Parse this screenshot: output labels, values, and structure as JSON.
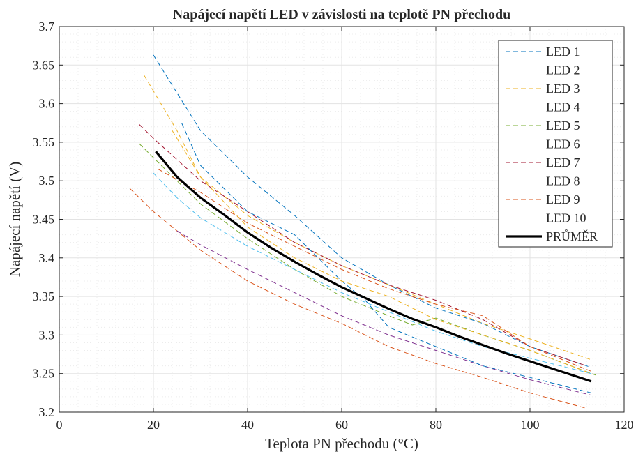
{
  "chart_data": {
    "type": "line",
    "title": "Napájecí napětí LED v závislosti na teplotě PN přechodu",
    "xlabel": "Teplota PN přechodu (°C)",
    "ylabel": "Napájecí napětí (V)",
    "xlim": [
      0,
      120
    ],
    "ylim": [
      3.2,
      3.7
    ],
    "xticks": [
      "0",
      "20",
      "40",
      "60",
      "80",
      "100",
      "120"
    ],
    "yticks": [
      "3.2",
      "3.25",
      "3.3",
      "3.35",
      "3.4",
      "3.45",
      "3.5",
      "3.55",
      "3.6",
      "3.65",
      "3.7"
    ],
    "grid": "major and minor",
    "legend_position": "top-right",
    "series": [
      {
        "name": "LED 1",
        "color": "#0072BD",
        "style": "dashed",
        "x": [
          20,
          30,
          40,
          50,
          60,
          70,
          80,
          90,
          100,
          113
        ],
        "y": [
          3.663,
          3.565,
          3.505,
          3.455,
          3.4,
          3.365,
          3.335,
          3.315,
          3.285,
          3.258
        ]
      },
      {
        "name": "LED 2",
        "color": "#D95319",
        "style": "dashed",
        "x": [
          15,
          20,
          30,
          40,
          50,
          60,
          70,
          80,
          90,
          100,
          112
        ],
        "y": [
          3.49,
          3.46,
          3.41,
          3.37,
          3.34,
          3.315,
          3.285,
          3.263,
          3.245,
          3.225,
          3.205
        ]
      },
      {
        "name": "LED 3",
        "color": "#EDB120",
        "style": "dashed",
        "x": [
          18,
          25,
          30,
          40,
          50,
          60,
          70,
          80,
          90,
          100,
          113
        ],
        "y": [
          3.637,
          3.565,
          3.505,
          3.455,
          3.42,
          3.39,
          3.365,
          3.34,
          3.315,
          3.295,
          3.268
        ]
      },
      {
        "name": "LED 4",
        "color": "#7E2F8E",
        "style": "dashed",
        "x": [
          25,
          30,
          40,
          50,
          60,
          70,
          80,
          90,
          100,
          113
        ],
        "y": [
          3.435,
          3.417,
          3.385,
          3.355,
          3.325,
          3.3,
          3.28,
          3.26,
          3.242,
          3.222
        ]
      },
      {
        "name": "LED 5",
        "color": "#77AC30",
        "style": "dashed",
        "x": [
          17,
          20,
          30,
          40,
          50,
          60,
          70,
          75,
          80,
          90,
          100,
          114
        ],
        "y": [
          3.548,
          3.53,
          3.47,
          3.425,
          3.385,
          3.35,
          3.325,
          3.313,
          3.322,
          3.3,
          3.28,
          3.248
        ]
      },
      {
        "name": "LED 6",
        "color": "#4DBEEE",
        "style": "dashed",
        "x": [
          20,
          25,
          30,
          40,
          50,
          60,
          70,
          80,
          90,
          100,
          113
        ],
        "y": [
          3.51,
          3.478,
          3.452,
          3.415,
          3.385,
          3.355,
          3.33,
          3.305,
          3.285,
          3.27,
          3.25
        ]
      },
      {
        "name": "LED 7",
        "color": "#A2142F",
        "style": "dashed",
        "x": [
          17,
          20,
          30,
          40,
          50,
          60,
          70,
          80,
          90,
          100,
          112
        ],
        "y": [
          3.573,
          3.555,
          3.5,
          3.46,
          3.42,
          3.39,
          3.365,
          3.345,
          3.32,
          3.285,
          3.26
        ]
      },
      {
        "name": "LED 8",
        "color": "#0072BD",
        "style": "dashed",
        "x": [
          26,
          30,
          40,
          50,
          60,
          65,
          70,
          80,
          90,
          100,
          113
        ],
        "y": [
          3.575,
          3.52,
          3.46,
          3.43,
          3.37,
          3.345,
          3.31,
          3.285,
          3.26,
          3.245,
          3.225
        ]
      },
      {
        "name": "LED 9",
        "color": "#D95319",
        "style": "dashed",
        "x": [
          21,
          30,
          40,
          50,
          60,
          70,
          80,
          90,
          100,
          113
        ],
        "y": [
          3.515,
          3.485,
          3.445,
          3.415,
          3.385,
          3.36,
          3.34,
          3.325,
          3.285,
          3.253
        ]
      },
      {
        "name": "LED 10",
        "color": "#EDB120",
        "style": "dashed",
        "x": [
          24,
          30,
          40,
          50,
          60,
          70,
          80,
          90,
          100,
          113
        ],
        "y": [
          3.565,
          3.505,
          3.44,
          3.4,
          3.37,
          3.35,
          3.32,
          3.3,
          3.28,
          3.25
        ]
      },
      {
        "name": "PRŮMĚR",
        "color": "#000000",
        "style": "solid",
        "x": [
          20.5,
          25,
          30,
          35,
          40,
          45,
          50,
          55,
          60,
          65,
          70,
          75,
          80,
          85,
          90,
          95,
          100,
          105,
          110,
          113
        ],
        "y": [
          3.538,
          3.505,
          3.478,
          3.456,
          3.433,
          3.413,
          3.395,
          3.378,
          3.362,
          3.348,
          3.334,
          3.321,
          3.31,
          3.298,
          3.287,
          3.276,
          3.266,
          3.256,
          3.246,
          3.24
        ]
      }
    ]
  }
}
